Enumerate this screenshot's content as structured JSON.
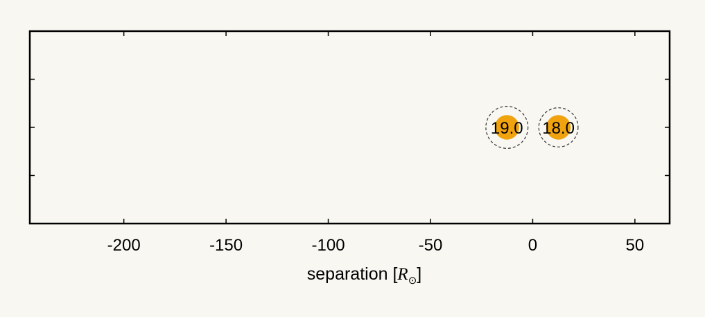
{
  "chart_data": {
    "type": "scatter",
    "title": "",
    "xlabel": {
      "text": "separation [",
      "math": "R",
      "sub": "⊙",
      "close": "]"
    },
    "ylabel": "",
    "xlim": [
      -246,
      67
    ],
    "ylim": [
      -1,
      1
    ],
    "xticks": [
      -200,
      -150,
      -100,
      -50,
      0,
      50
    ],
    "xtick_labels": [
      "-200",
      "-150",
      "-100",
      "-50",
      "0",
      "50"
    ],
    "yticks": [
      -0.5,
      0,
      0.5
    ],
    "grid": false,
    "legend": "none",
    "colors": {
      "background": "#f8f7f1",
      "frame": "#000000",
      "star_fill": "#f0a30f",
      "roche_line": "#333333"
    },
    "points": [
      {
        "label": "19.0",
        "x": -12.6,
        "y": 0,
        "radius": 6.0,
        "roche_radius": 10.3
      },
      {
        "label": "18.0",
        "x": 12.6,
        "y": 0,
        "radius": 6.0,
        "roche_radius": 9.6
      }
    ]
  }
}
